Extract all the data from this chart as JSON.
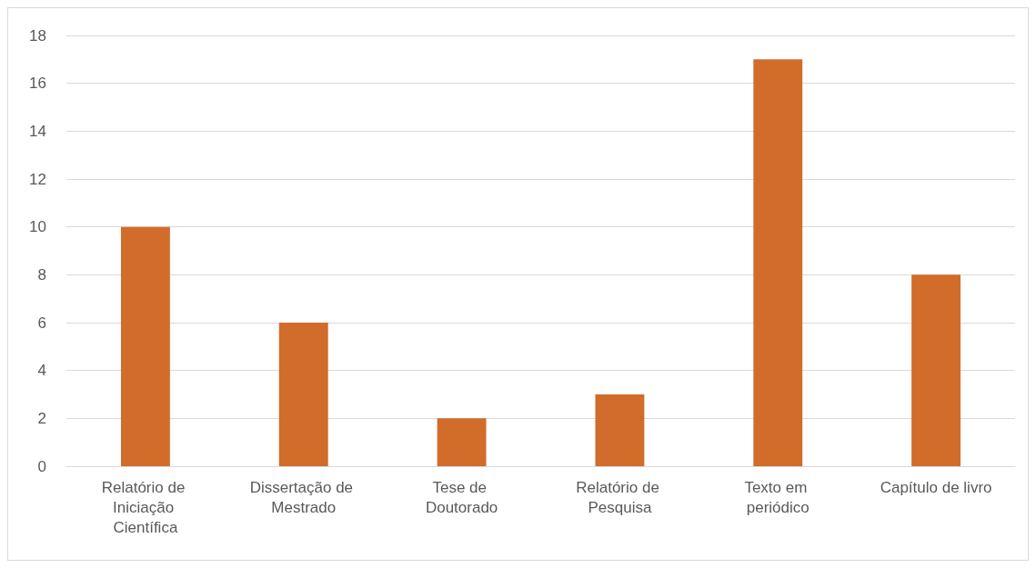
{
  "chart_data": {
    "type": "bar",
    "categories": [
      "Relatório de Iniciação Científica",
      "Dissertação de Mestrado",
      "Tese de Doutorado",
      "Relatório de Pesquisa",
      "Texto em periódico",
      "Capítulo de livro"
    ],
    "values": [
      10,
      6,
      2,
      3,
      17,
      8
    ],
    "color": "#d26c2a",
    "ylim": [
      0,
      18
    ],
    "yticks": [
      0,
      2,
      4,
      6,
      8,
      10,
      12,
      14,
      16,
      18
    ],
    "grid": "y"
  }
}
